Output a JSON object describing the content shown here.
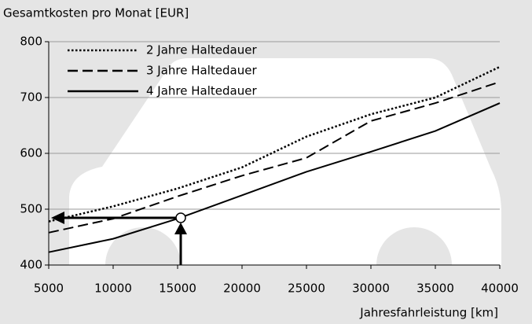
{
  "chart_data": {
    "type": "line",
    "y_label": "Gesamtkosten pro Monat [EUR]",
    "x_label": "Jahresfahrleistung [km]",
    "x": [
      5000,
      10000,
      15000,
      20000,
      25000,
      30000,
      35000,
      40000
    ],
    "series": [
      {
        "name": "2 Jahre Haltedauer",
        "color": "#000000",
        "dash": "dotted",
        "values": [
          478,
          505,
          537,
          575,
          630,
          670,
          700,
          755
        ]
      },
      {
        "name": "3 Jahre Haltedauer",
        "color": "#000000",
        "dash": "dashed",
        "values": [
          458,
          483,
          523,
          560,
          592,
          658,
          690,
          728
        ]
      },
      {
        "name": "4 Jahre Haltedauer",
        "color": "#000000",
        "dash": "solid",
        "values": [
          423,
          447,
          483,
          525,
          567,
          603,
          640,
          690
        ]
      }
    ],
    "xlim": [
      5000,
      40000
    ],
    "xticks": [
      5000,
      10000,
      15000,
      20000,
      25000,
      30000,
      35000,
      40000
    ],
    "ylim": [
      400,
      800
    ],
    "yticks": [
      400,
      500,
      600,
      700,
      800
    ],
    "grid": true,
    "legend": "upper left"
  }
}
